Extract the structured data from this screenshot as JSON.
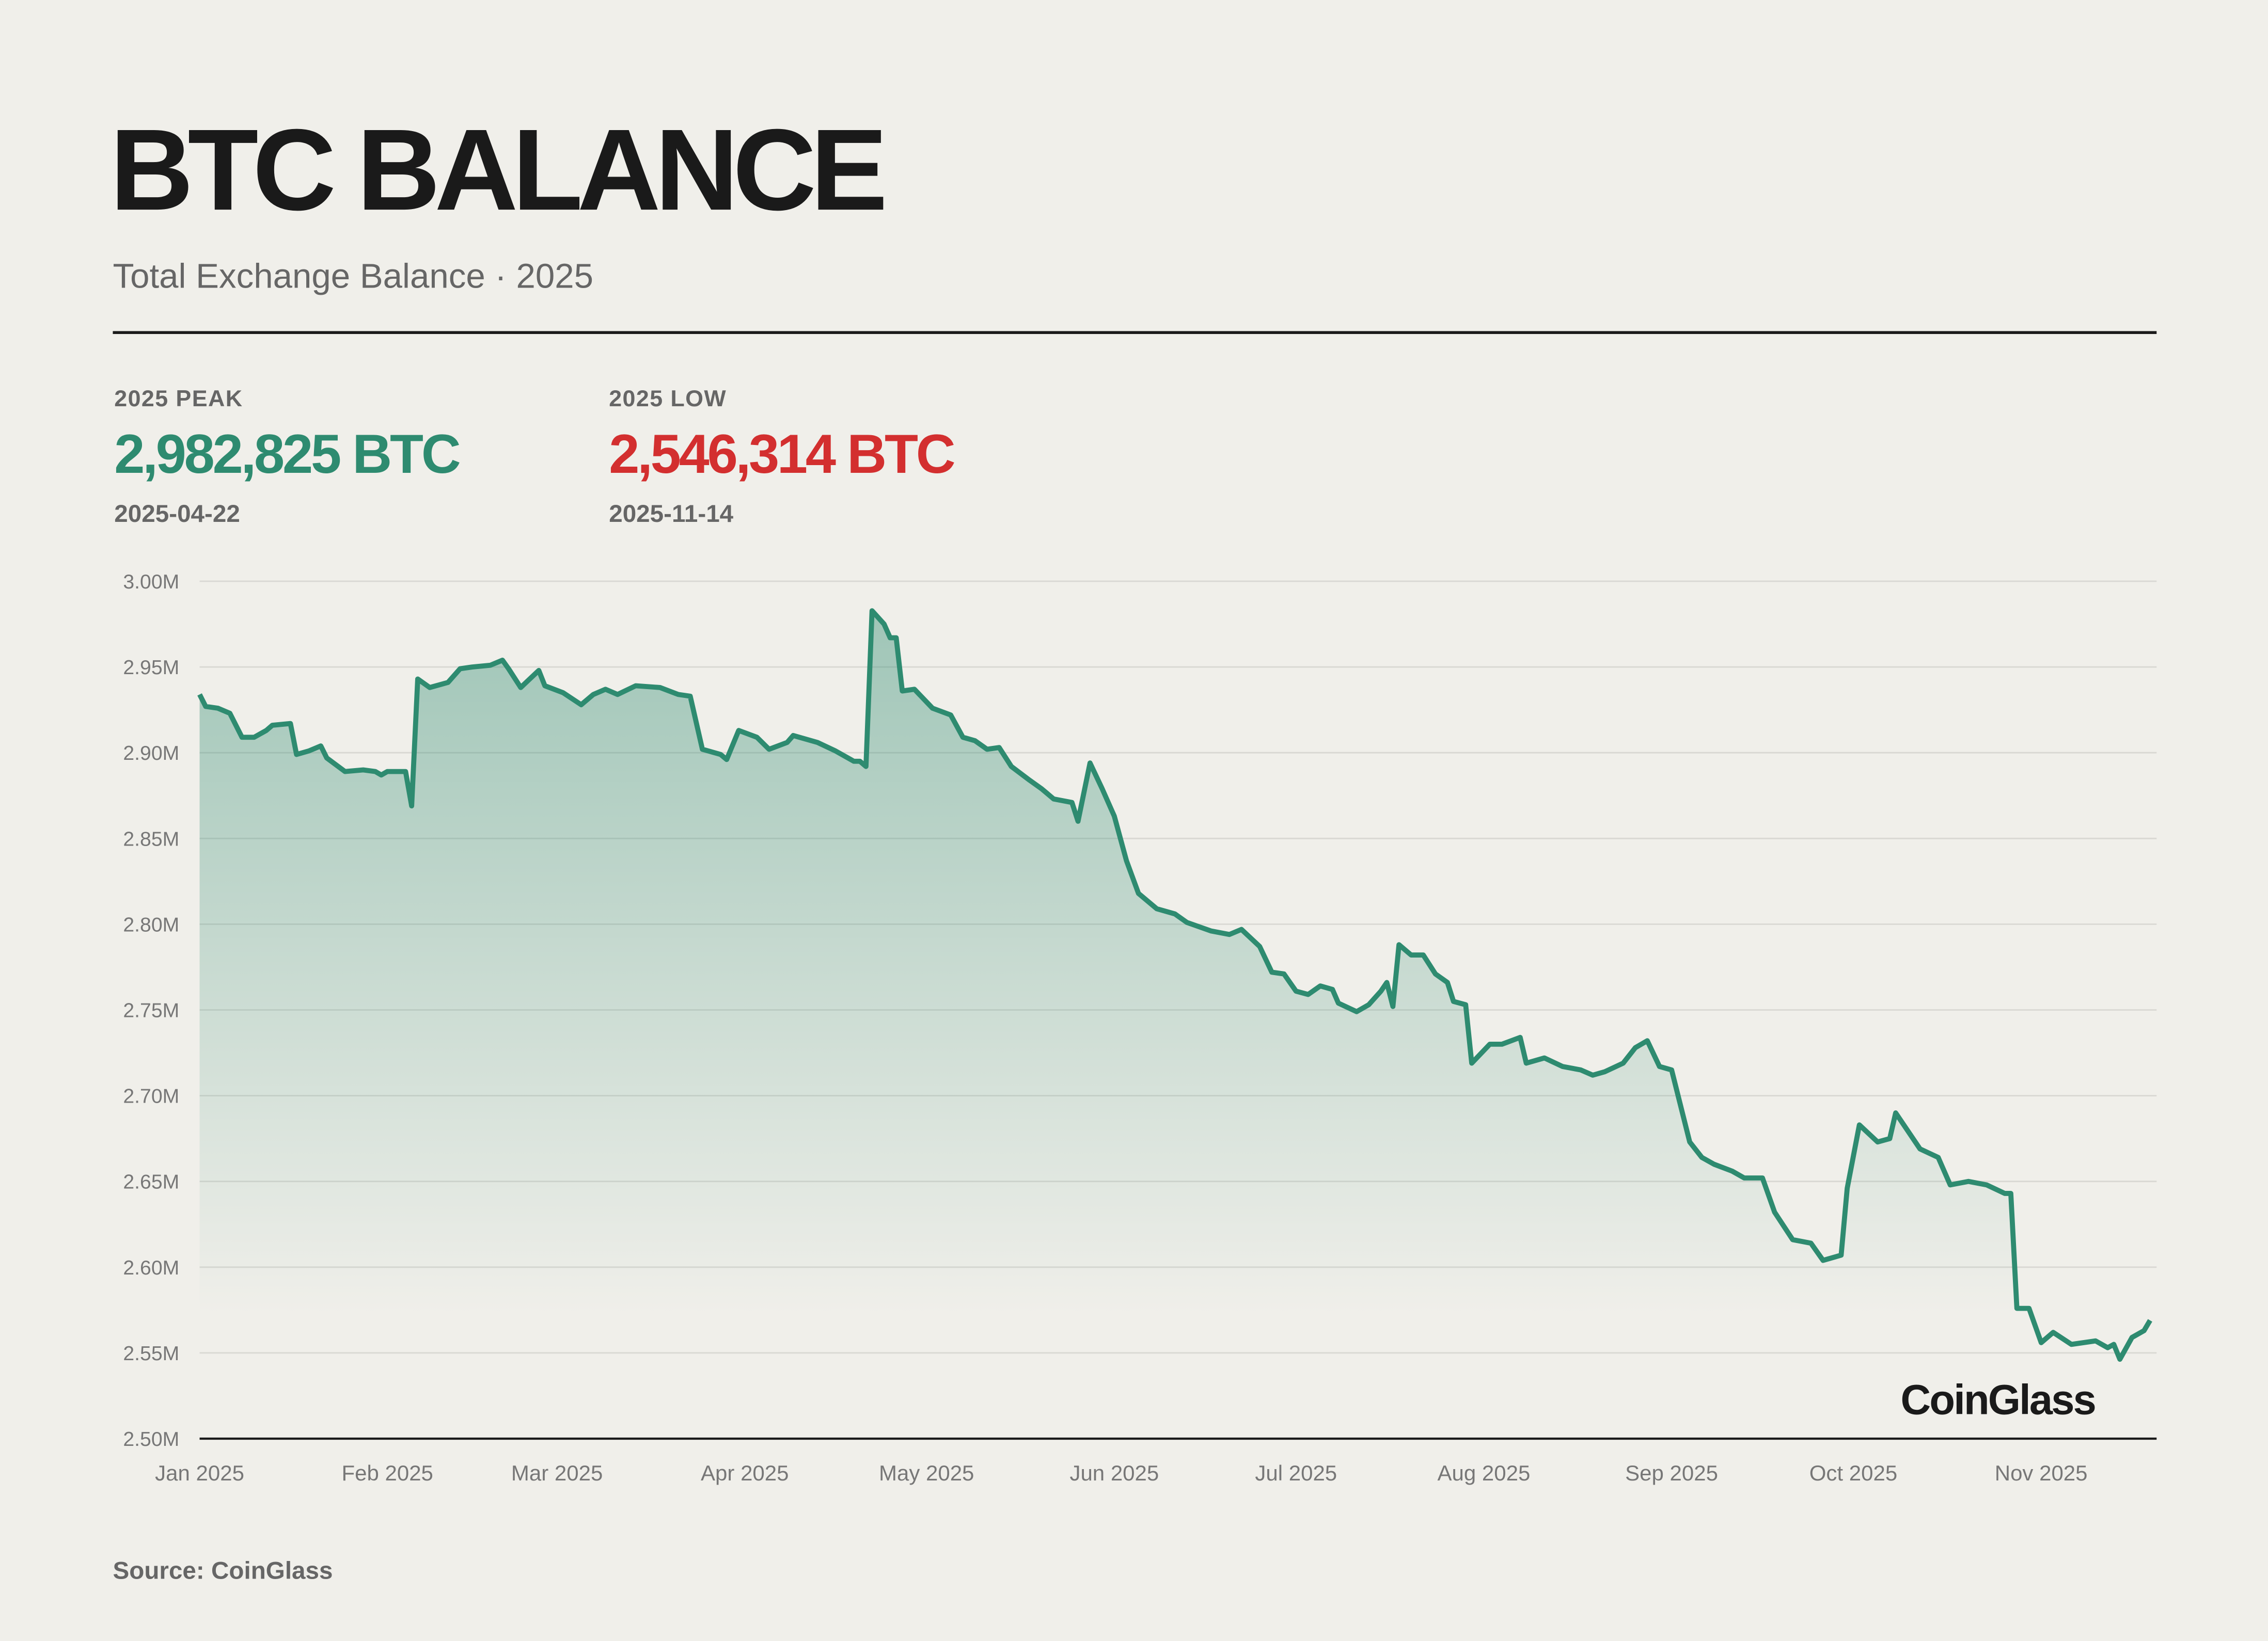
{
  "header": {
    "title": "BTC BALANCE",
    "subtitle": "Total Exchange Balance · 2025"
  },
  "stats": {
    "peak": {
      "label": "2025 PEAK",
      "value": "2,982,825 BTC",
      "date": "2025-04-22",
      "color": "#2e8b70"
    },
    "low": {
      "label": "2025 LOW",
      "value": "2,546,314 BTC",
      "date": "2025-11-14",
      "color": "#d32f2f"
    }
  },
  "logo": "CoinGlass",
  "source": "Source: CoinGlass",
  "chart_data": {
    "type": "area",
    "title": "",
    "xlabel": "",
    "ylabel": "",
    "ylim": [
      2.5,
      3.0
    ],
    "y_unit": "M BTC",
    "yticks": [
      "2.50M",
      "2.55M",
      "2.60M",
      "2.65M",
      "2.70M",
      "2.75M",
      "2.80M",
      "2.85M",
      "2.90M",
      "2.95M",
      "3.00M"
    ],
    "xticks": [
      {
        "date": "2025-01-01",
        "label": "Jan 2025"
      },
      {
        "date": "2025-02-01",
        "label": "Feb 2025"
      },
      {
        "date": "2025-03-01",
        "label": "Mar 2025"
      },
      {
        "date": "2025-04-01",
        "label": "Apr 2025"
      },
      {
        "date": "2025-05-01",
        "label": "May 2025"
      },
      {
        "date": "2025-06-01",
        "label": "Jun 2025"
      },
      {
        "date": "2025-07-01",
        "label": "Jul 2025"
      },
      {
        "date": "2025-08-01",
        "label": "Aug 2025"
      },
      {
        "date": "2025-09-01",
        "label": "Sep 2025"
      },
      {
        "date": "2025-10-01",
        "label": "Oct 2025"
      },
      {
        "date": "2025-11-01",
        "label": "Nov 2025"
      }
    ],
    "grid": true,
    "line_color": "#2e8b70",
    "series": [
      {
        "points": [
          [
            "2025-01-01",
            2.934
          ],
          [
            "2025-01-02",
            2.927
          ],
          [
            "2025-01-04",
            2.926
          ],
          [
            "2025-01-06",
            2.923
          ],
          [
            "2025-01-08",
            2.909
          ],
          [
            "2025-01-10",
            2.909
          ],
          [
            "2025-01-12",
            2.913
          ],
          [
            "2025-01-13",
            2.916
          ],
          [
            "2025-01-16",
            2.917
          ],
          [
            "2025-01-17",
            2.899
          ],
          [
            "2025-01-19",
            2.901
          ],
          [
            "2025-01-21",
            2.904
          ],
          [
            "2025-01-22",
            2.897
          ],
          [
            "2025-01-25",
            2.889
          ],
          [
            "2025-01-28",
            2.89
          ],
          [
            "2025-01-30",
            2.889
          ],
          [
            "2025-01-31",
            2.887
          ],
          [
            "2025-02-01",
            2.889
          ],
          [
            "2025-02-04",
            2.889
          ],
          [
            "2025-02-05",
            2.869
          ],
          [
            "2025-02-06",
            2.943
          ],
          [
            "2025-02-08",
            2.938
          ],
          [
            "2025-02-11",
            2.941
          ],
          [
            "2025-02-13",
            2.949
          ],
          [
            "2025-02-15",
            2.95
          ],
          [
            "2025-02-18",
            2.951
          ],
          [
            "2025-02-20",
            2.954
          ],
          [
            "2025-02-21",
            2.949
          ],
          [
            "2025-02-23",
            2.938
          ],
          [
            "2025-02-26",
            2.948
          ],
          [
            "2025-02-27",
            2.939
          ],
          [
            "2025-03-02",
            2.935
          ],
          [
            "2025-03-05",
            2.928
          ],
          [
            "2025-03-07",
            2.934
          ],
          [
            "2025-03-09",
            2.937
          ],
          [
            "2025-03-11",
            2.934
          ],
          [
            "2025-03-14",
            2.939
          ],
          [
            "2025-03-18",
            2.938
          ],
          [
            "2025-03-21",
            2.934
          ],
          [
            "2025-03-23",
            2.933
          ],
          [
            "2025-03-25",
            2.902
          ],
          [
            "2025-03-28",
            2.899
          ],
          [
            "2025-03-29",
            2.896
          ],
          [
            "2025-03-31",
            2.913
          ],
          [
            "2025-04-03",
            2.909
          ],
          [
            "2025-04-05",
            2.902
          ],
          [
            "2025-04-08",
            2.906
          ],
          [
            "2025-04-09",
            2.91
          ],
          [
            "2025-04-13",
            2.906
          ],
          [
            "2025-04-16",
            2.901
          ],
          [
            "2025-04-19",
            2.895
          ],
          [
            "2025-04-20",
            2.895
          ],
          [
            "2025-04-21",
            2.892
          ],
          [
            "2025-04-22",
            2.9828
          ],
          [
            "2025-04-24",
            2.975
          ],
          [
            "2025-04-25",
            2.967
          ],
          [
            "2025-04-26",
            2.967
          ],
          [
            "2025-04-27",
            2.936
          ],
          [
            "2025-04-29",
            2.937
          ],
          [
            "2025-05-02",
            2.926
          ],
          [
            "2025-05-05",
            2.922
          ],
          [
            "2025-05-07",
            2.909
          ],
          [
            "2025-05-09",
            2.907
          ],
          [
            "2025-05-11",
            2.902
          ],
          [
            "2025-05-13",
            2.903
          ],
          [
            "2025-05-15",
            2.892
          ],
          [
            "2025-05-18",
            2.884
          ],
          [
            "2025-05-20",
            2.879
          ],
          [
            "2025-05-22",
            2.873
          ],
          [
            "2025-05-25",
            2.871
          ],
          [
            "2025-05-26",
            2.86
          ],
          [
            "2025-05-28",
            2.894
          ],
          [
            "2025-05-30",
            2.879
          ],
          [
            "2025-06-01",
            2.863
          ],
          [
            "2025-06-03",
            2.837
          ],
          [
            "2025-06-05",
            2.818
          ],
          [
            "2025-06-08",
            2.809
          ],
          [
            "2025-06-11",
            2.806
          ],
          [
            "2025-06-13",
            2.801
          ],
          [
            "2025-06-17",
            2.796
          ],
          [
            "2025-06-20",
            2.794
          ],
          [
            "2025-06-22",
            2.797
          ],
          [
            "2025-06-25",
            2.787
          ],
          [
            "2025-06-27",
            2.772
          ],
          [
            "2025-06-29",
            2.771
          ],
          [
            "2025-07-01",
            2.761
          ],
          [
            "2025-07-03",
            2.759
          ],
          [
            "2025-07-05",
            2.764
          ],
          [
            "2025-07-07",
            2.762
          ],
          [
            "2025-07-08",
            2.754
          ],
          [
            "2025-07-11",
            2.749
          ],
          [
            "2025-07-13",
            2.753
          ],
          [
            "2025-07-15",
            2.761
          ],
          [
            "2025-07-16",
            2.766
          ],
          [
            "2025-07-17",
            2.752
          ],
          [
            "2025-07-18",
            2.788
          ],
          [
            "2025-07-20",
            2.782
          ],
          [
            "2025-07-22",
            2.782
          ],
          [
            "2025-07-24",
            2.771
          ],
          [
            "2025-07-26",
            2.766
          ],
          [
            "2025-07-27",
            2.755
          ],
          [
            "2025-07-29",
            2.753
          ],
          [
            "2025-07-30",
            2.719
          ],
          [
            "2025-08-02",
            2.73
          ],
          [
            "2025-08-04",
            2.73
          ],
          [
            "2025-08-07",
            2.734
          ],
          [
            "2025-08-08",
            2.719
          ],
          [
            "2025-08-11",
            2.722
          ],
          [
            "2025-08-14",
            2.717
          ],
          [
            "2025-08-17",
            2.715
          ],
          [
            "2025-08-19",
            2.712
          ],
          [
            "2025-08-21",
            2.714
          ],
          [
            "2025-08-24",
            2.719
          ],
          [
            "2025-08-26",
            2.728
          ],
          [
            "2025-08-28",
            2.732
          ],
          [
            "2025-08-30",
            2.717
          ],
          [
            "2025-09-01",
            2.715
          ],
          [
            "2025-09-04",
            2.673
          ],
          [
            "2025-09-06",
            2.664
          ],
          [
            "2025-09-08",
            2.66
          ],
          [
            "2025-09-11",
            2.656
          ],
          [
            "2025-09-13",
            2.652
          ],
          [
            "2025-09-16",
            2.652
          ],
          [
            "2025-09-18",
            2.632
          ],
          [
            "2025-09-21",
            2.616
          ],
          [
            "2025-09-24",
            2.614
          ],
          [
            "2025-09-26",
            2.604
          ],
          [
            "2025-09-29",
            2.607
          ],
          [
            "2025-09-30",
            2.646
          ],
          [
            "2025-10-02",
            2.683
          ],
          [
            "2025-10-05",
            2.673
          ],
          [
            "2025-10-07",
            2.675
          ],
          [
            "2025-10-08",
            2.69
          ],
          [
            "2025-10-12",
            2.669
          ],
          [
            "2025-10-15",
            2.664
          ],
          [
            "2025-10-17",
            2.648
          ],
          [
            "2025-10-20",
            2.65
          ],
          [
            "2025-10-23",
            2.648
          ],
          [
            "2025-10-26",
            2.643
          ],
          [
            "2025-10-27",
            2.643
          ],
          [
            "2025-10-28",
            2.576
          ],
          [
            "2025-10-30",
            2.576
          ],
          [
            "2025-11-01",
            2.556
          ],
          [
            "2025-11-03",
            2.562
          ],
          [
            "2025-11-06",
            2.555
          ],
          [
            "2025-11-10",
            2.557
          ],
          [
            "2025-11-12",
            2.553
          ],
          [
            "2025-11-13",
            2.555
          ],
          [
            "2025-11-14",
            2.5463
          ],
          [
            "2025-11-16",
            2.559
          ],
          [
            "2025-11-18",
            2.563
          ],
          [
            "2025-11-19",
            2.569
          ]
        ]
      }
    ]
  }
}
